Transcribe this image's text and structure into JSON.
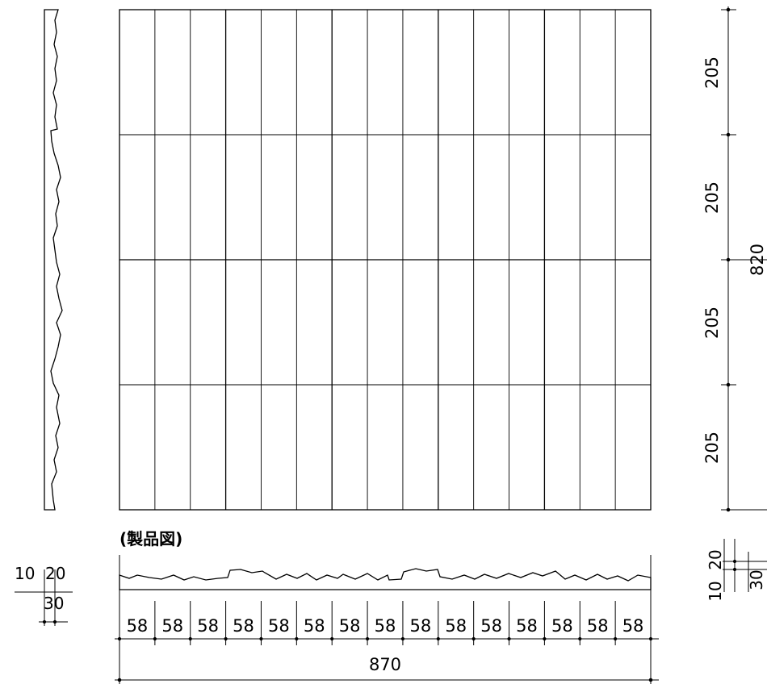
{
  "caption": "(製品図)",
  "panel": {
    "columns": 15,
    "rows": 4
  },
  "dimensions": {
    "row_heights": [
      "205",
      "205",
      "205",
      "205"
    ],
    "total_height": "820",
    "column_width": "58",
    "total_width": "870",
    "thickness_top": "20",
    "thickness_total": "30",
    "thickness_bottom": "10"
  }
}
